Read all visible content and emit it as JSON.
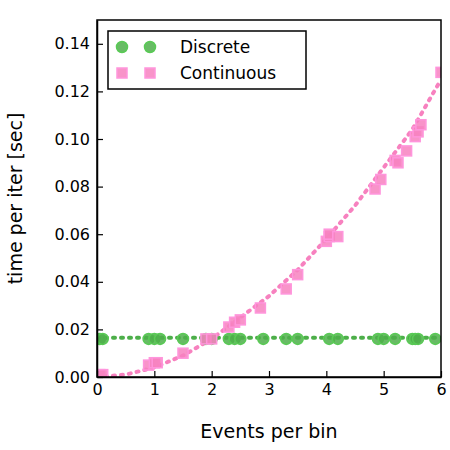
{
  "chart_data": {
    "type": "scatter",
    "x_label": "Events per bin",
    "y_label": "time per iter [sec]",
    "xlim": [
      0,
      6
    ],
    "ylim": [
      0,
      0.15
    ],
    "xticks": [
      0,
      1,
      2,
      3,
      4,
      5,
      6
    ],
    "yticks": [
      {
        "value": 0,
        "label": "0.00"
      },
      {
        "value": 0.02,
        "label": "0.02"
      },
      {
        "value": 0.04,
        "label": "0.04"
      },
      {
        "value": 0.06,
        "label": "0.06"
      },
      {
        "value": 0.08,
        "label": "0.08"
      },
      {
        "value": 0.1,
        "label": "0.10"
      },
      {
        "value": 0.12,
        "label": "0.12"
      },
      {
        "value": 0.14,
        "label": "0.14"
      }
    ],
    "grid": false,
    "legend": "upper left",
    "series": [
      {
        "name": "Discrete",
        "color": "#4daf4a",
        "marker": "circle",
        "line_style": "dotted",
        "x": [
          0.05,
          0.1,
          0.9,
          1.0,
          1.1,
          1.5,
          1.9,
          2.0,
          2.3,
          2.4,
          2.5,
          2.9,
          3.3,
          3.5,
          4.05,
          4.2,
          4.9,
          5.0,
          5.2,
          5.5,
          5.55,
          5.6,
          5.9
        ],
        "values": [
          0.016,
          0.016,
          0.016,
          0.016,
          0.016,
          0.016,
          0.016,
          0.016,
          0.016,
          0.016,
          0.016,
          0.016,
          0.016,
          0.016,
          0.016,
          0.016,
          0.016,
          0.016,
          0.016,
          0.016,
          0.016,
          0.016,
          0.016
        ],
        "fit_x": [
          0,
          6
        ],
        "fit_values": [
          0.0165,
          0.0165
        ]
      },
      {
        "name": "Continuous",
        "color": "#f781bf",
        "marker": "square",
        "line_style": "dotted",
        "x": [
          0.05,
          0.1,
          0.9,
          1.0,
          1.05,
          1.5,
          1.9,
          2.0,
          2.3,
          2.4,
          2.5,
          2.85,
          3.3,
          3.5,
          4.0,
          4.05,
          4.05,
          4.2,
          4.85,
          4.95,
          5.2,
          5.25,
          5.4,
          5.55,
          5.6,
          5.65,
          6.0
        ],
        "values": [
          0.001,
          0.001,
          0.005,
          0.006,
          0.006,
          0.01,
          0.016,
          0.016,
          0.021,
          0.023,
          0.024,
          0.029,
          0.037,
          0.043,
          0.057,
          0.059,
          0.06,
          0.059,
          0.079,
          0.083,
          0.091,
          0.09,
          0.095,
          0.101,
          0.103,
          0.106,
          0.128
        ],
        "fit_x": [
          0,
          0.5,
          1,
          1.5,
          2,
          2.5,
          3,
          3.5,
          4,
          4.5,
          5,
          5.5,
          6
        ],
        "fit_values": [
          0.0,
          0.001,
          0.004,
          0.009,
          0.016,
          0.025,
          0.034,
          0.045,
          0.058,
          0.072,
          0.088,
          0.104,
          0.125
        ]
      }
    ]
  }
}
